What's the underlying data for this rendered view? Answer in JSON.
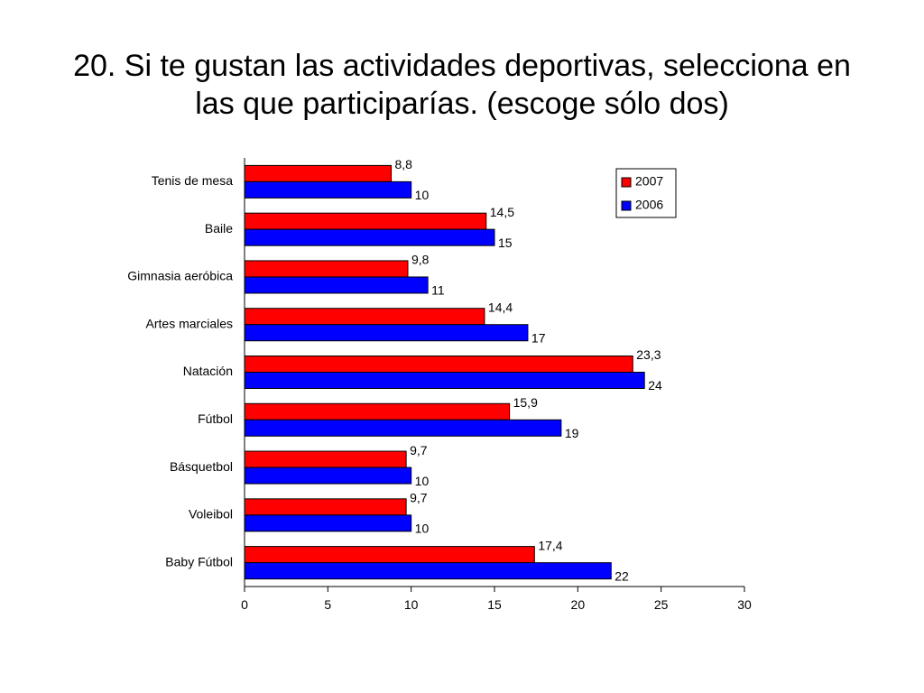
{
  "slide": {
    "title_line_1": "20. Si te gustan las actividades deportivas, selecciona en",
    "title_line_2": "las que participarías. (escoge sólo dos)"
  },
  "colors": {
    "series_2007": "#ff0000",
    "series_2006": "#0000ff",
    "outline": "#000000",
    "background": "#ffffff"
  },
  "chart_data": {
    "type": "bar",
    "orientation": "horizontal",
    "categories": [
      "Tenis de mesa",
      "Baile",
      "Gimnasia aeróbica",
      "Artes marciales",
      "Natación",
      "Fútbol",
      "Básquetbol",
      "Voleibol",
      "Baby Fútbol"
    ],
    "series": [
      {
        "name": "2007",
        "values": [
          8.8,
          14.5,
          9.8,
          14.4,
          23.3,
          15.9,
          9.7,
          9.7,
          17.4
        ],
        "labels": [
          "8,8",
          "14,5",
          "9,8",
          "14,4",
          "23,3",
          "15,9",
          "9,7",
          "9,7",
          "17,4"
        ]
      },
      {
        "name": "2006",
        "values": [
          10,
          15,
          11,
          17,
          24,
          19,
          10,
          10,
          22
        ],
        "labels": [
          "10",
          "15",
          "11",
          "17",
          "24",
          "19",
          "10",
          "10",
          "22"
        ]
      }
    ],
    "xlim": [
      0,
      30
    ],
    "xticks": [
      0,
      5,
      10,
      15,
      20,
      25,
      30
    ],
    "grid": false,
    "legend_position": "top-right"
  }
}
